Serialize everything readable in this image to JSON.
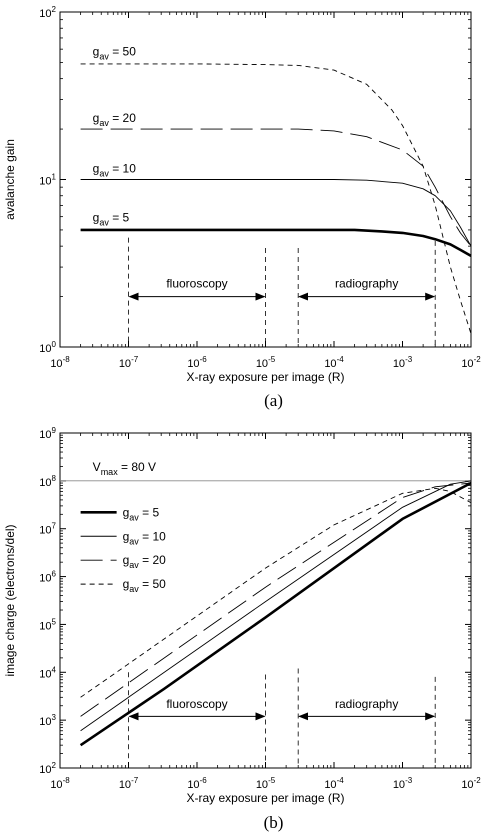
{
  "chart_data": [
    {
      "type": "line",
      "caption": "(a)",
      "xlabel": "X-ray exposure per image (R)",
      "ylabel": "avalanche gain",
      "x_scale": "log",
      "y_scale": "log",
      "xlim": [
        1e-08,
        0.01
      ],
      "ylim": [
        1,
        100
      ],
      "x_ticks": [
        {
          "value": 1e-08,
          "mant": "10",
          "exp": "-8"
        },
        {
          "value": 1e-07,
          "mant": "10",
          "exp": "-7"
        },
        {
          "value": 1e-06,
          "mant": "10",
          "exp": "-6"
        },
        {
          "value": 1e-05,
          "mant": "10",
          "exp": "-5"
        },
        {
          "value": 0.0001,
          "mant": "10",
          "exp": "-4"
        },
        {
          "value": 0.001,
          "mant": "10",
          "exp": "-3"
        },
        {
          "value": 0.01,
          "mant": "10",
          "exp": "-2"
        }
      ],
      "y_ticks": [
        {
          "value": 1,
          "mant": "10",
          "exp": "0"
        },
        {
          "value": 10,
          "mant": "10",
          "exp": "1"
        },
        {
          "value": 100,
          "mant": "10",
          "exp": "2"
        }
      ],
      "grid": false,
      "series": [
        {
          "name": "g_av = 50",
          "label_base": "g",
          "label_sub": "av",
          "label_rest": " = 50",
          "style": "short-dash",
          "label_at": [
            3e-08,
            55
          ],
          "x": [
            2e-08,
            1e-06,
            1e-05,
            3e-05,
            0.0001,
            0.0003,
            0.0007,
            0.001,
            0.002,
            0.003,
            0.005,
            0.007,
            0.01
          ],
          "y": [
            49,
            49,
            48.5,
            48,
            45,
            37,
            26,
            21,
            12,
            7,
            3,
            1.9,
            1.2
          ]
        },
        {
          "name": "g_av = 20",
          "label_base": "g",
          "label_sub": "av",
          "label_rest": " = 20",
          "style": "long-dash",
          "label_at": [
            3e-08,
            22
          ],
          "x": [
            2e-08,
            1e-06,
            1e-05,
            3e-05,
            0.0001,
            0.0003,
            0.001,
            0.002,
            0.003,
            0.005,
            0.007,
            0.01
          ],
          "y": [
            20,
            20,
            20,
            20,
            19.5,
            18,
            15,
            12,
            9,
            6,
            4.8,
            4
          ]
        },
        {
          "name": "g_av = 10",
          "label_base": "g",
          "label_sub": "av",
          "label_rest": " = 10",
          "style": "thin",
          "label_at": [
            3e-08,
            11
          ],
          "x": [
            2e-08,
            1e-06,
            1e-05,
            0.0001,
            0.0003,
            0.001,
            0.002,
            0.003,
            0.005,
            0.007,
            0.01
          ],
          "y": [
            10,
            10,
            10,
            10,
            9.9,
            9.5,
            8.8,
            8,
            6.5,
            5.2,
            4
          ]
        },
        {
          "name": "g_av = 5",
          "label_base": "g",
          "label_sub": "av",
          "label_rest": " = 5",
          "style": "thick",
          "label_at": [
            3e-08,
            5.6
          ],
          "x": [
            2e-08,
            1e-06,
            1e-05,
            0.0001,
            0.0002,
            0.0005,
            0.001,
            0.002,
            0.003,
            0.005,
            0.007,
            0.01
          ],
          "y": [
            5,
            5,
            5,
            5,
            5,
            4.9,
            4.8,
            4.6,
            4.4,
            4.1,
            3.8,
            3.5
          ]
        }
      ],
      "vlines": [
        {
          "x": 1e-07,
          "y1": 4.5,
          "y2": 1
        },
        {
          "x": 1e-05,
          "y1": 3.9,
          "y2": 1
        },
        {
          "x": 3e-05,
          "y1": 3.9,
          "y2": 1
        },
        {
          "x": 0.003,
          "y1": 4.3,
          "y2": 1
        }
      ],
      "annotations": [
        {
          "text": "fluoroscopy",
          "x1": 1e-07,
          "x2": 1e-05,
          "y": 2,
          "label_y": 2.4
        },
        {
          "text": "radiography",
          "x1": 3e-05,
          "x2": 0.003,
          "y": 2,
          "label_y": 2.4
        }
      ]
    },
    {
      "type": "line",
      "caption": "(b)",
      "xlabel": "X-ray exposure per image (R)",
      "ylabel": "image charge (electrons/del)",
      "x_scale": "log",
      "y_scale": "log",
      "xlim": [
        1e-08,
        0.01
      ],
      "ylim": [
        100,
        1000000000.0
      ],
      "x_ticks": [
        {
          "value": 1e-08,
          "mant": "10",
          "exp": "-8"
        },
        {
          "value": 1e-07,
          "mant": "10",
          "exp": "-7"
        },
        {
          "value": 1e-06,
          "mant": "10",
          "exp": "-6"
        },
        {
          "value": 1e-05,
          "mant": "10",
          "exp": "-5"
        },
        {
          "value": 0.0001,
          "mant": "10",
          "exp": "-4"
        },
        {
          "value": 0.001,
          "mant": "10",
          "exp": "-3"
        },
        {
          "value": 0.01,
          "mant": "10",
          "exp": "-2"
        }
      ],
      "y_ticks": [
        {
          "value": 100,
          "mant": "10",
          "exp": "2"
        },
        {
          "value": 1000,
          "mant": "10",
          "exp": "3"
        },
        {
          "value": 10000,
          "mant": "10",
          "exp": "4"
        },
        {
          "value": 100000,
          "mant": "10",
          "exp": "5"
        },
        {
          "value": 1000000,
          "mant": "10",
          "exp": "6"
        },
        {
          "value": 10000000,
          "mant": "10",
          "exp": "7"
        },
        {
          "value": 100000000,
          "mant": "10",
          "exp": "8"
        },
        {
          "value": 1000000000,
          "mant": "10",
          "exp": "9"
        }
      ],
      "grid": false,
      "hline": {
        "y": 100000000,
        "label_base": "V",
        "label_sub": "max",
        "label_rest": " = 80 V",
        "label_at": [
          3e-08,
          160000000.0
        ]
      },
      "legend": {
        "placement": "left",
        "at": [
          2e-08,
          22000000.0
        ],
        "step_decades": 0.5
      },
      "series": [
        {
          "name": "g_av = 5",
          "label_base": "g",
          "label_sub": "av",
          "label_rest": " = 5",
          "style": "thick",
          "x": [
            2e-08,
            3.3e-07,
            1e-05,
            0.001,
            0.01
          ],
          "y": [
            300,
            4500,
            140000,
            16000000,
            90000000
          ]
        },
        {
          "name": "g_av = 10",
          "label_base": "g",
          "label_sub": "av",
          "label_rest": " = 10",
          "style": "thin",
          "x": [
            2e-08,
            1e-07,
            1e-05,
            0.001,
            0.005,
            0.01
          ],
          "y": [
            600,
            3000,
            300000,
            28000000,
            85000000,
            100000000
          ]
        },
        {
          "name": "g_av = 20",
          "label_base": "g",
          "label_sub": "av",
          "label_rest": " = 20",
          "style": "long-dash",
          "x": [
            2e-08,
            1e-07,
            1e-05,
            0.001,
            0.003,
            0.01
          ],
          "y": [
            1200,
            6000,
            600000,
            45000000,
            75000000,
            90000000
          ]
        },
        {
          "name": "g_av = 50",
          "label_base": "g",
          "label_sub": "av",
          "label_rest": " = 50",
          "style": "short-dash",
          "x": [
            2e-08,
            1e-07,
            1e-05,
            0.0001,
            0.001,
            0.003,
            0.005,
            0.01
          ],
          "y": [
            3000,
            15000,
            1500000,
            12000000,
            55000000,
            70000000,
            60000000,
            35000000
          ]
        }
      ],
      "vlines": [
        {
          "x": 1e-07,
          "y1": 10000,
          "y2": 100
        },
        {
          "x": 1e-05,
          "y1": 9000,
          "y2": 100
        },
        {
          "x": 3e-05,
          "y1": 12000,
          "y2": 100
        },
        {
          "x": 0.003,
          "y1": 8000,
          "y2": 100
        }
      ],
      "annotations": [
        {
          "text": "fluoroscopy",
          "x1": 1e-07,
          "x2": 1e-05,
          "y": 1200,
          "label_y": 2200
        },
        {
          "text": "radiography",
          "x1": 3e-05,
          "x2": 0.003,
          "y": 1200,
          "label_y": 2200
        }
      ]
    }
  ]
}
